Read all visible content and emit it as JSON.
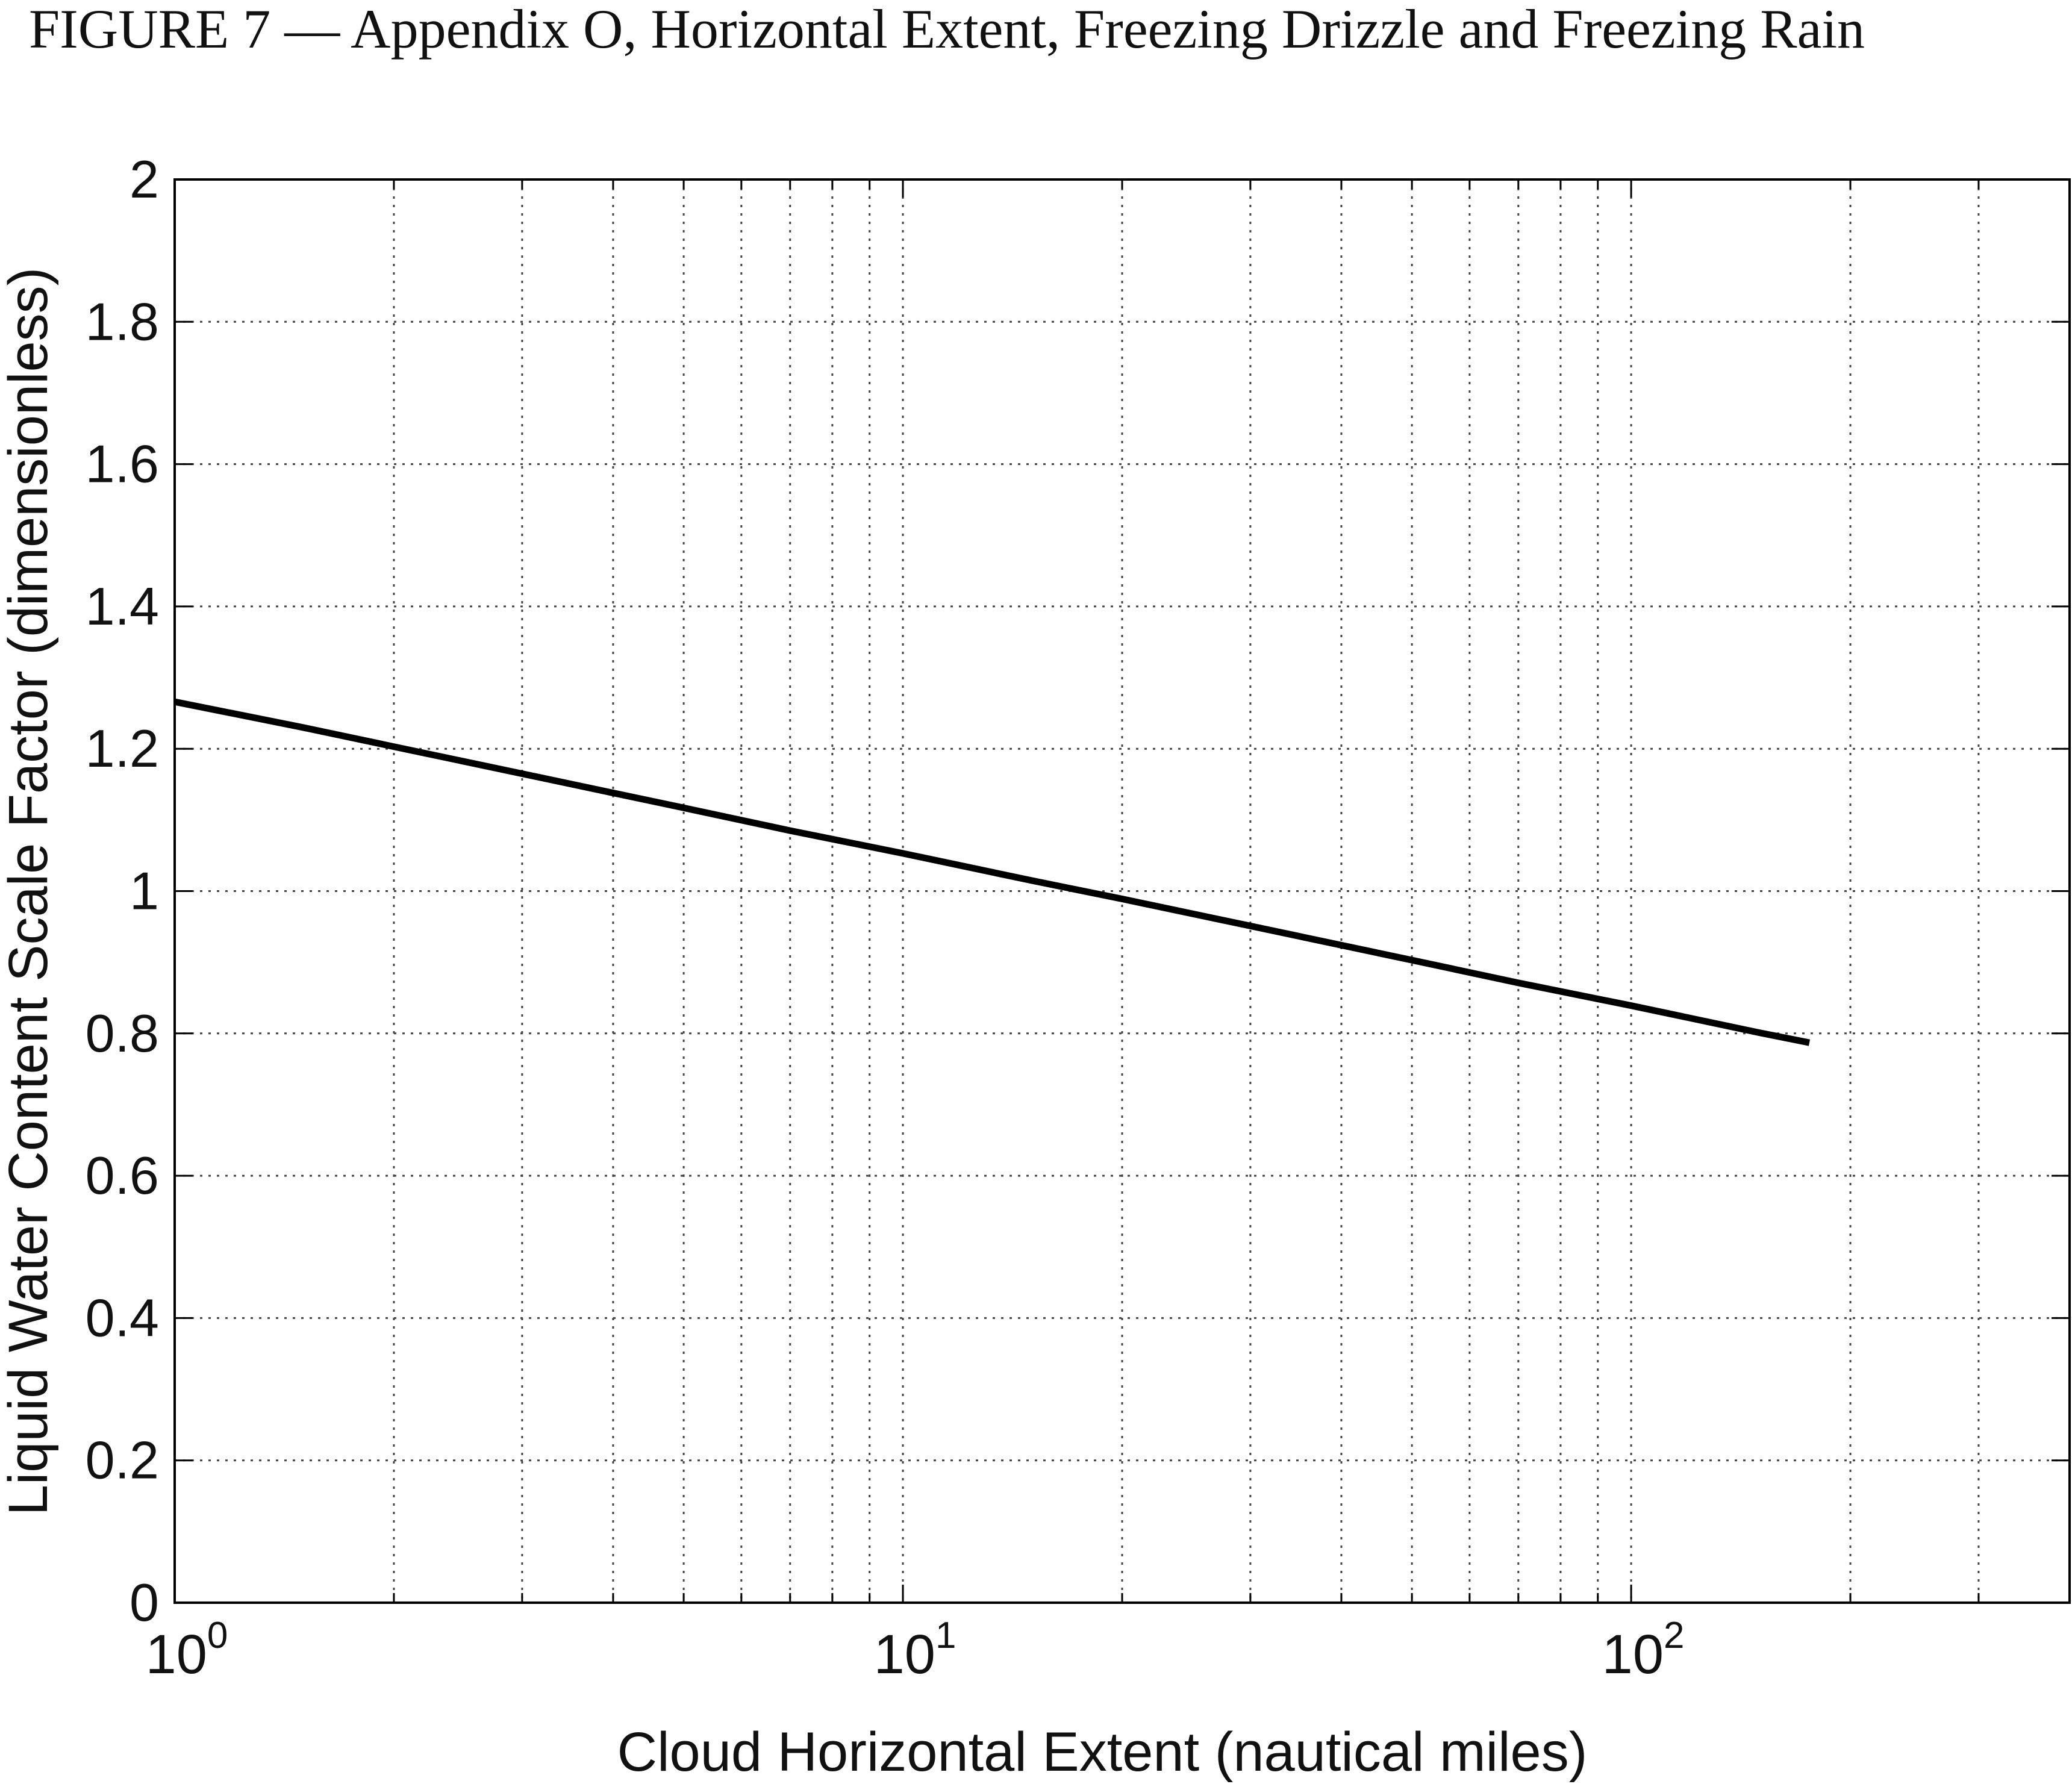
{
  "figure_title": "FIGURE 7 — Appendix O, Horizontal Extent, Freezing Drizzle and Freezing Rain",
  "chart_data": {
    "type": "line",
    "title": "FIGURE 7 — Appendix O, Horizontal Extent, Freezing Drizzle and Freezing Rain",
    "xlabel": "Cloud Horizontal Extent (nautical miles)",
    "ylabel": "Liquid Water Content Scale Factor (dimensionless)",
    "x_scale": "log",
    "xlim": [
      1,
      400
    ],
    "ylim": [
      0,
      2
    ],
    "grid": true,
    "grid_style": "dotted",
    "x_major_ticks": [
      {
        "value": 1,
        "base": "10",
        "exp": "0"
      },
      {
        "value": 10,
        "base": "10",
        "exp": "1"
      },
      {
        "value": 100,
        "base": "10",
        "exp": "2"
      }
    ],
    "x_minor_ticks": [
      2,
      3,
      4,
      5,
      6,
      7,
      8,
      9,
      20,
      30,
      40,
      50,
      60,
      70,
      80,
      90,
      200,
      300
    ],
    "y_ticks": [
      "0",
      "0.2",
      "0.4",
      "0.6",
      "0.8",
      "1",
      "1.2",
      "1.4",
      "1.6",
      "1.8",
      "2"
    ],
    "series": [
      {
        "color": "#000000",
        "x": [
          1,
          1.5,
          2,
          3,
          5,
          7,
          10,
          15,
          20,
          30,
          50,
          70,
          100,
          150,
          175.68
        ],
        "y": [
          1.266,
          1.23,
          1.203,
          1.165,
          1.117,
          1.085,
          1.053,
          1.015,
          0.989,
          0.951,
          0.903,
          0.871,
          0.839,
          0.801,
          0.787
        ]
      }
    ],
    "colors": {
      "line": "#000000",
      "grid": "#444444",
      "axes": "#000000"
    }
  }
}
